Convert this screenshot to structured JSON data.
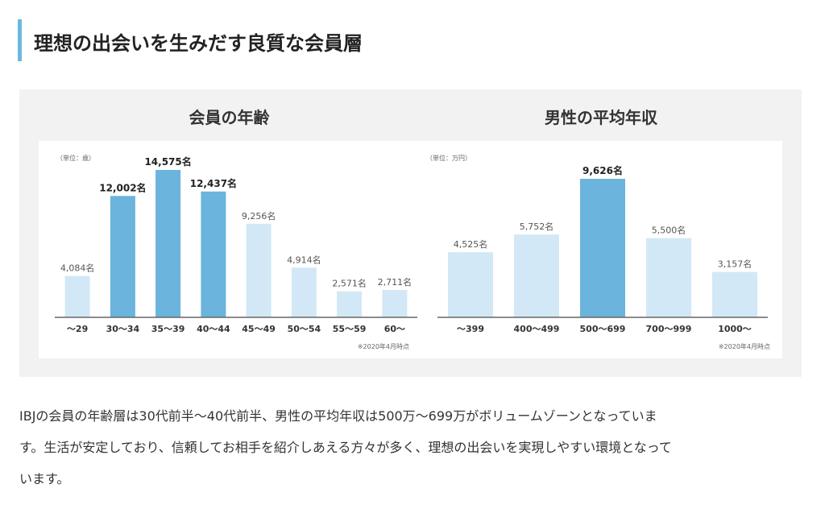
{
  "heading": {
    "title": "理想の出会いを生みだす良質な会員層"
  },
  "chart_data": [
    {
      "type": "bar",
      "title": "会員の年齢",
      "unit_note": "（単位：歳）",
      "categories": [
        "〜29",
        "30〜34",
        "35〜39",
        "40〜44",
        "45〜49",
        "50〜54",
        "55〜59",
        "60〜"
      ],
      "values": [
        4084,
        12002,
        14575,
        12437,
        9256,
        4914,
        2571,
        2711
      ],
      "value_labels": [
        "4,084名",
        "12,002名",
        "14,575名",
        "12,437名",
        "9,256名",
        "4,914名",
        "2,571名",
        "2,711名"
      ],
      "highlight": [
        false,
        true,
        true,
        true,
        false,
        false,
        false,
        false
      ],
      "ylim": [
        0,
        14575
      ],
      "footnote": "※2020年4月時点",
      "colors": {
        "bar": "#d2e8f6",
        "highlight": "#6ab4de"
      }
    },
    {
      "type": "bar",
      "title": "男性の平均年収",
      "unit_note": "（単位：万円）",
      "categories": [
        "〜399",
        "400〜499",
        "500〜699",
        "700〜999",
        "1000〜"
      ],
      "values": [
        4525,
        5752,
        9626,
        5500,
        3157
      ],
      "value_labels": [
        "4,525名",
        "5,752名",
        "9,626名",
        "5,500名",
        "3,157名"
      ],
      "highlight": [
        false,
        false,
        true,
        false,
        false
      ],
      "ylim": [
        0,
        9626
      ],
      "footnote": "※2020年4月時点",
      "colors": {
        "bar": "#d2e8f6",
        "highlight": "#6ab4de"
      }
    }
  ],
  "description": {
    "lines": [
      "IBJの会員の年齢層は30代前半〜40代前半、男性の平均年収は500万〜699万がボリュームゾーンとなっていま",
      "す。生活が安定しており、信頼してお相手を紹介しあえる方々が多く、理想の出会いを実現しやすい環境となって",
      "います。"
    ]
  }
}
